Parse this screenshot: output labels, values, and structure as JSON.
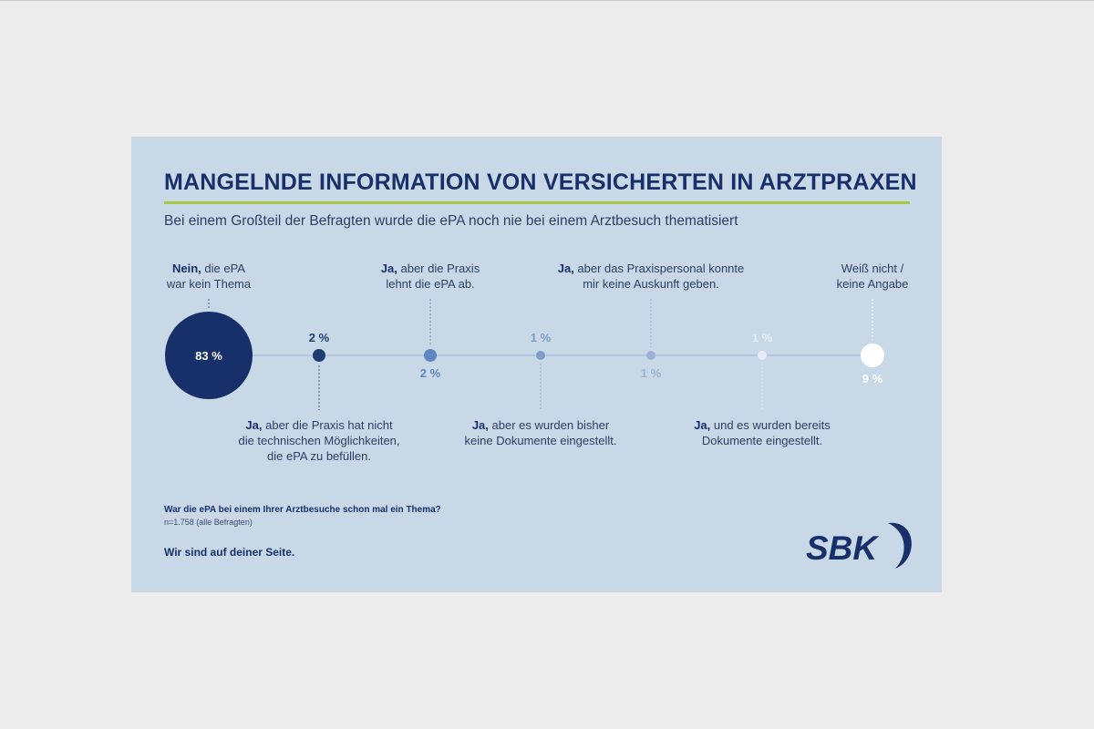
{
  "header": {
    "title": "MANGELNDE INFORMATION VON VERSICHERTEN IN ARZTPRAXEN",
    "subtitle": "Bei einem Großteil der Befragten wurde die ePA noch nie bei einem Arztbesuch thematisiert"
  },
  "chart_data": {
    "type": "bubble-timeline",
    "title": "MANGELNDE INFORMATION VON VERSICHERTEN IN ARZTPRAXEN",
    "unit": "%",
    "categories": [
      {
        "bold": "Nein,",
        "rest_lines": [
          "die ePA",
          "war kein Thema"
        ],
        "value": 83,
        "value_label": "83 %",
        "color": "#17306a"
      },
      {
        "bold": "Ja,",
        "rest_lines": [
          "aber die Praxis hat nicht",
          "die technischen Möglichkeiten,",
          "die ePA zu befüllen."
        ],
        "value": 2,
        "value_label": "2 %",
        "color": "#1e3c72"
      },
      {
        "bold": "Ja,",
        "rest_lines": [
          "aber die Praxis",
          "lehnt die ePA ab."
        ],
        "value": 2,
        "value_label": "2 %",
        "color": "#5f87c2"
      },
      {
        "bold": "Ja,",
        "rest_lines": [
          "aber es wurden bisher",
          "keine Dokumente eingestellt."
        ],
        "value": 1,
        "value_label": "1 %",
        "color": "#7d9dc8"
      },
      {
        "bold": "Ja,",
        "rest_lines": [
          "aber das Praxispersonal konnte",
          "mir keine Auskunft geben."
        ],
        "value": 1,
        "value_label": "1 %",
        "color": "#9bb2d2"
      },
      {
        "bold": "Ja,",
        "rest_lines": [
          "und es wurden bereits",
          "Dokumente eingestellt."
        ],
        "value": 1,
        "value_label": "1 %",
        "color": "#e6edf6"
      },
      {
        "bold": "",
        "rest_lines": [
          "Weiß nicht /",
          "keine Angabe"
        ],
        "value": 9,
        "value_label": "9 %",
        "color": "#ffffff"
      }
    ]
  },
  "footer": {
    "question": "War die ePA bei einem Ihrer Arztbesuche schon mal ein Thema?",
    "sample": "n=1.758 (alle Befragten)",
    "slogan": "Wir sind auf deiner Seite."
  },
  "logo": {
    "text": "SBK",
    "color": "#17306a"
  }
}
